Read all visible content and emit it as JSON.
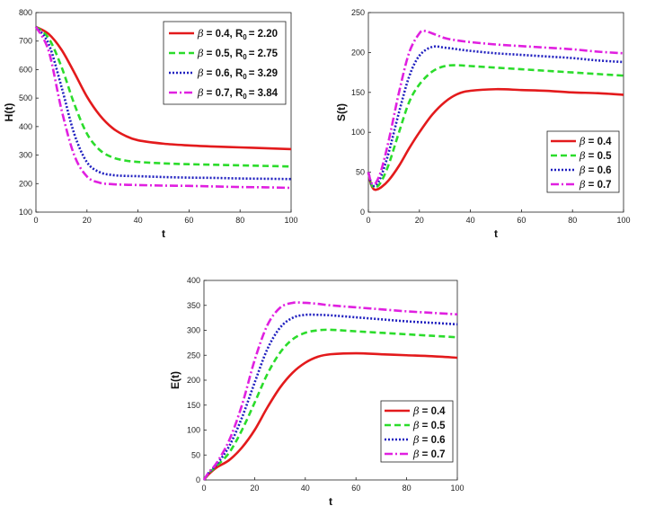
{
  "chart_data": [
    {
      "type": "line",
      "id": "H",
      "xlabel": "t",
      "ylabel": "H(t)",
      "xlim": [
        0,
        100
      ],
      "ylim": [
        100,
        800
      ],
      "xticks": [
        "0",
        "20",
        "40",
        "60",
        "80",
        "100"
      ],
      "yticks": [
        "100",
        "200",
        "300",
        "400",
        "500",
        "600",
        "700",
        "800"
      ],
      "legend_position": "top-right",
      "series": [
        {
          "name": "β = 0.4, R0 = 2.20",
          "beta": "= 0.4, R",
          "r0": "= 2.20",
          "color": "#e31a1c",
          "dash": "solid",
          "x": [
            0,
            5,
            10,
            15,
            20,
            25,
            30,
            35,
            40,
            50,
            60,
            70,
            80,
            90,
            100
          ],
          "y": [
            750,
            725,
            670,
            590,
            505,
            440,
            395,
            368,
            352,
            340,
            334,
            330,
            327,
            324,
            321
          ]
        },
        {
          "name": "β = 0.5, R0 = 2.75",
          "beta": "= 0.5, R",
          "r0": "= 2.75",
          "color": "#2bdc2b",
          "dash": "dashed",
          "x": [
            0,
            5,
            10,
            15,
            20,
            25,
            30,
            35,
            40,
            50,
            60,
            70,
            80,
            90,
            100
          ],
          "y": [
            750,
            710,
            610,
            480,
            375,
            318,
            292,
            281,
            276,
            271,
            268,
            266,
            264,
            262,
            260
          ]
        },
        {
          "name": "β = 0.6, R0 = 3.29",
          "beta": "= 0.6, R",
          "r0": "= 3.29",
          "color": "#1f1fbf",
          "dash": "dotted",
          "x": [
            0,
            5,
            10,
            15,
            20,
            25,
            30,
            35,
            40,
            50,
            60,
            70,
            80,
            90,
            100
          ],
          "y": [
            750,
            690,
            540,
            375,
            275,
            240,
            230,
            227,
            226,
            223,
            221,
            220,
            218,
            217,
            216
          ]
        },
        {
          "name": "β = 0.7, R0 = 3.84",
          "beta": "= 0.7, R",
          "r0": "= 3.84",
          "color": "#e020e0",
          "dash": "dashdot",
          "x": [
            0,
            5,
            10,
            15,
            20,
            25,
            30,
            35,
            40,
            50,
            60,
            70,
            80,
            90,
            100
          ],
          "y": [
            750,
            665,
            460,
            300,
            225,
            203,
            198,
            196,
            195,
            193,
            192,
            190,
            188,
            187,
            185
          ]
        }
      ]
    },
    {
      "type": "line",
      "id": "S",
      "xlabel": "t",
      "ylabel": "S(t)",
      "xlim": [
        0,
        100
      ],
      "ylim": [
        0,
        250
      ],
      "xticks": [
        "0",
        "20",
        "40",
        "60",
        "80",
        "100"
      ],
      "yticks": [
        "0",
        "50",
        "100",
        "150",
        "200",
        "250"
      ],
      "legend_position": "right",
      "series": [
        {
          "name": "β = 0.4",
          "beta": "= 0.4",
          "color": "#e31a1c",
          "dash": "solid",
          "x": [
            0,
            1,
            2,
            3,
            5,
            8,
            12,
            16,
            20,
            25,
            30,
            35,
            40,
            50,
            60,
            70,
            80,
            90,
            100
          ],
          "y": [
            50,
            35,
            29,
            28,
            31,
            40,
            58,
            80,
            100,
            122,
            138,
            148,
            152,
            154,
            153,
            152,
            150,
            149,
            147
          ]
        },
        {
          "name": "β = 0.5",
          "beta": "= 0.5",
          "color": "#2bdc2b",
          "dash": "dashed",
          "x": [
            0,
            1,
            2,
            3,
            5,
            8,
            12,
            16,
            20,
            25,
            30,
            35,
            40,
            50,
            60,
            70,
            80,
            90,
            100
          ],
          "y": [
            50,
            36,
            31,
            31,
            38,
            60,
            100,
            138,
            160,
            176,
            183,
            184,
            183,
            181,
            179,
            177,
            175,
            173,
            171
          ]
        },
        {
          "name": "β = 0.6",
          "beta": "= 0.6",
          "color": "#1f1fbf",
          "dash": "dotted",
          "x": [
            0,
            1,
            2,
            3,
            5,
            8,
            12,
            16,
            20,
            25,
            30,
            35,
            40,
            50,
            60,
            70,
            80,
            90,
            100
          ],
          "y": [
            50,
            37,
            33,
            34,
            45,
            75,
            125,
            170,
            196,
            207,
            206,
            204,
            202,
            199,
            197,
            195,
            193,
            190,
            188
          ]
        },
        {
          "name": "β = 0.7",
          "beta": "= 0.7",
          "color": "#e020e0",
          "dash": "dashdot",
          "x": [
            0,
            1,
            2,
            3,
            5,
            8,
            12,
            16,
            20,
            22,
            25,
            30,
            35,
            40,
            50,
            60,
            70,
            80,
            90,
            100
          ],
          "y": [
            50,
            38,
            35,
            37,
            52,
            90,
            150,
            200,
            224,
            227,
            224,
            218,
            215,
            213,
            210,
            208,
            206,
            204,
            201,
            199
          ]
        }
      ]
    },
    {
      "type": "line",
      "id": "E",
      "xlabel": "t",
      "ylabel": "E(t)",
      "xlim": [
        0,
        100
      ],
      "ylim": [
        0,
        400
      ],
      "xticks": [
        "0",
        "20",
        "40",
        "60",
        "80",
        "100"
      ],
      "yticks": [
        "0",
        "50",
        "100",
        "150",
        "200",
        "250",
        "300",
        "350",
        "400"
      ],
      "legend_position": "bottom-right",
      "series": [
        {
          "name": "β = 0.4",
          "beta": "= 0.4",
          "color": "#e31a1c",
          "dash": "solid",
          "x": [
            0,
            2,
            5,
            10,
            15,
            20,
            25,
            30,
            35,
            40,
            45,
            50,
            60,
            70,
            80,
            90,
            100
          ],
          "y": [
            0,
            12,
            25,
            40,
            65,
            100,
            145,
            185,
            215,
            235,
            247,
            252,
            254,
            252,
            250,
            248,
            245
          ]
        },
        {
          "name": "β = 0.5",
          "beta": "= 0.5",
          "color": "#2bdc2b",
          "dash": "dashed",
          "x": [
            0,
            2,
            5,
            10,
            15,
            20,
            25,
            30,
            35,
            40,
            45,
            50,
            60,
            70,
            80,
            90,
            100
          ],
          "y": [
            0,
            14,
            28,
            55,
            100,
            155,
            212,
            255,
            282,
            295,
            300,
            301,
            298,
            295,
            292,
            289,
            286
          ]
        },
        {
          "name": "β = 0.6",
          "beta": "= 0.6",
          "color": "#1f1fbf",
          "dash": "dotted",
          "x": [
            0,
            2,
            5,
            10,
            15,
            20,
            25,
            30,
            35,
            40,
            45,
            50,
            60,
            70,
            80,
            90,
            100
          ],
          "y": [
            0,
            15,
            31,
            68,
            125,
            195,
            262,
            305,
            325,
            331,
            331,
            330,
            326,
            322,
            318,
            315,
            312
          ]
        },
        {
          "name": "β = 0.7",
          "beta": "= 0.7",
          "color": "#e020e0",
          "dash": "dashdot",
          "x": [
            0,
            2,
            5,
            10,
            15,
            20,
            25,
            30,
            35,
            40,
            45,
            50,
            60,
            70,
            80,
            90,
            100
          ],
          "y": [
            0,
            16,
            34,
            80,
            150,
            240,
            310,
            345,
            355,
            355,
            353,
            350,
            346,
            342,
            338,
            335,
            332
          ]
        }
      ]
    }
  ]
}
